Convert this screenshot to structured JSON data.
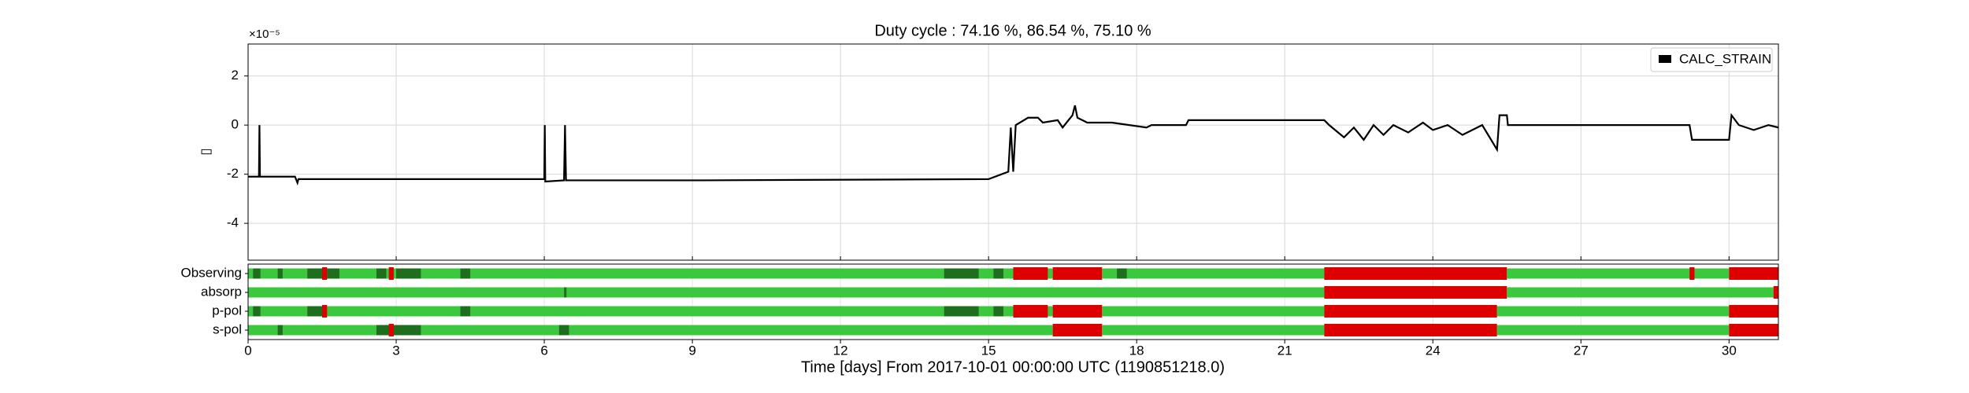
{
  "chart_data": [
    {
      "type": "line",
      "title": "Duty cycle : 74.16 %, 86.54 %, 75.10 %",
      "ylabel": "▯",
      "offset_label": "×10⁻⁵",
      "x": [
        0,
        0.22,
        0.23,
        0.24,
        0.95,
        1.0,
        1.02,
        6.0,
        6.01,
        6.02,
        6.4,
        6.42,
        6.44,
        9.2,
        15.0,
        15.4,
        15.45,
        15.5,
        15.55,
        15.8,
        16.0,
        16.1,
        16.4,
        16.5,
        16.7,
        16.75,
        16.8,
        17.0,
        17.5,
        18.2,
        18.3,
        19.0,
        19.05,
        21.8,
        21.9,
        22.2,
        22.4,
        22.6,
        22.8,
        23.0,
        23.2,
        23.5,
        23.8,
        24.0,
        24.3,
        24.6,
        25.0,
        25.3,
        25.35,
        25.5,
        25.52,
        29.2,
        29.25,
        30.0,
        30.05,
        30.2,
        30.5,
        30.8,
        31.0
      ],
      "series": [
        {
          "name": "CALC_STRAIN",
          "color": "#000000",
          "values": [
            -2.1,
            -2.1,
            0,
            -2.1,
            -2.1,
            -2.35,
            -2.2,
            -2.2,
            0,
            -2.3,
            -2.25,
            0,
            -2.25,
            -2.25,
            -2.2,
            -1.9,
            -0.1,
            -1.9,
            0,
            0.3,
            0.3,
            0.1,
            0.2,
            -0.1,
            0.4,
            0.8,
            0.3,
            0.1,
            0.1,
            -0.1,
            0,
            0,
            0.2,
            0.2,
            0,
            -0.5,
            -0.1,
            -0.6,
            0,
            -0.4,
            0,
            -0.3,
            0.1,
            -0.2,
            0,
            -0.4,
            0,
            -1.0,
            0.4,
            0.4,
            0,
            0,
            -0.6,
            -0.6,
            0.4,
            0,
            -0.2,
            0,
            -0.1
          ]
        }
      ],
      "xlim": [
        0,
        31
      ],
      "xticks": [
        0,
        3,
        6,
        9,
        12,
        15,
        18,
        21,
        24,
        27,
        30
      ],
      "ylim": [
        -5.5,
        3.3
      ],
      "yticks": [
        2,
        0,
        -2,
        -4
      ],
      "grid": true,
      "legend": "upper right"
    },
    {
      "type": "segments",
      "xlabel": "Time [days] From 2017-10-01 00:00:00 UTC (1190851218.0)",
      "categories": [
        "Observing",
        "absorp",
        "p-pol",
        "s-pol"
      ],
      "xlim": [
        0,
        31
      ],
      "xticks": [
        0,
        3,
        6,
        9,
        12,
        15,
        18,
        21,
        24,
        27,
        30
      ],
      "segments": [
        [
          {
            "start": 0,
            "end": 16.3,
            "color": "#3cc83c"
          },
          {
            "start": 0.1,
            "end": 0.25,
            "color": "#1e6e1e"
          },
          {
            "start": 0.6,
            "end": 0.7,
            "color": "#1e6e1e"
          },
          {
            "start": 1.2,
            "end": 1.5,
            "color": "#1e6e1e"
          },
          {
            "start": 1.5,
            "end": 1.6,
            "color": "#dd0000"
          },
          {
            "start": 1.6,
            "end": 1.85,
            "color": "#1e6e1e"
          },
          {
            "start": 2.6,
            "end": 2.8,
            "color": "#1e6e1e"
          },
          {
            "start": 2.85,
            "end": 2.95,
            "color": "#dd0000"
          },
          {
            "start": 3.0,
            "end": 3.5,
            "color": "#1e6e1e"
          },
          {
            "start": 4.3,
            "end": 4.5,
            "color": "#1e6e1e"
          },
          {
            "start": 14.1,
            "end": 14.8,
            "color": "#1e6e1e"
          },
          {
            "start": 15.1,
            "end": 15.3,
            "color": "#1e6e1e"
          },
          {
            "start": 15.5,
            "end": 16.2,
            "color": "#dd0000"
          },
          {
            "start": 16.3,
            "end": 17.3,
            "color": "#dd0000"
          },
          {
            "start": 17.3,
            "end": 21.8,
            "color": "#3cc83c"
          },
          {
            "start": 17.6,
            "end": 17.8,
            "color": "#1e6e1e"
          },
          {
            "start": 21.8,
            "end": 25.5,
            "color": "#dd0000"
          },
          {
            "start": 25.5,
            "end": 30.0,
            "color": "#3cc83c"
          },
          {
            "start": 29.2,
            "end": 29.3,
            "color": "#dd0000"
          },
          {
            "start": 30.0,
            "end": 31.0,
            "color": "#dd0000"
          }
        ],
        [
          {
            "start": 0,
            "end": 21.8,
            "color": "#3cc83c"
          },
          {
            "start": 6.4,
            "end": 6.45,
            "color": "#1e6e1e"
          },
          {
            "start": 21.8,
            "end": 25.5,
            "color": "#dd0000"
          },
          {
            "start": 25.5,
            "end": 30.9,
            "color": "#3cc83c"
          },
          {
            "start": 30.9,
            "end": 31.0,
            "color": "#dd0000"
          }
        ],
        [
          {
            "start": 0,
            "end": 16.3,
            "color": "#3cc83c"
          },
          {
            "start": 0.1,
            "end": 0.25,
            "color": "#1e6e1e"
          },
          {
            "start": 1.2,
            "end": 1.5,
            "color": "#1e6e1e"
          },
          {
            "start": 1.5,
            "end": 1.6,
            "color": "#dd0000"
          },
          {
            "start": 4.3,
            "end": 4.5,
            "color": "#1e6e1e"
          },
          {
            "start": 14.1,
            "end": 14.8,
            "color": "#1e6e1e"
          },
          {
            "start": 15.1,
            "end": 15.3,
            "color": "#1e6e1e"
          },
          {
            "start": 15.5,
            "end": 16.2,
            "color": "#dd0000"
          },
          {
            "start": 16.3,
            "end": 17.3,
            "color": "#dd0000"
          },
          {
            "start": 17.3,
            "end": 21.8,
            "color": "#3cc83c"
          },
          {
            "start": 21.8,
            "end": 25.3,
            "color": "#dd0000"
          },
          {
            "start": 25.3,
            "end": 30.0,
            "color": "#3cc83c"
          },
          {
            "start": 30.0,
            "end": 31.0,
            "color": "#dd0000"
          }
        ],
        [
          {
            "start": 0,
            "end": 16.3,
            "color": "#3cc83c"
          },
          {
            "start": 0.6,
            "end": 0.7,
            "color": "#1e6e1e"
          },
          {
            "start": 2.6,
            "end": 3.5,
            "color": "#1e6e1e"
          },
          {
            "start": 2.85,
            "end": 2.95,
            "color": "#dd0000"
          },
          {
            "start": 6.3,
            "end": 6.5,
            "color": "#1e6e1e"
          },
          {
            "start": 16.3,
            "end": 17.3,
            "color": "#dd0000"
          },
          {
            "start": 17.3,
            "end": 21.8,
            "color": "#3cc83c"
          },
          {
            "start": 21.8,
            "end": 25.3,
            "color": "#dd0000"
          },
          {
            "start": 25.3,
            "end": 30.0,
            "color": "#3cc83c"
          },
          {
            "start": 30.0,
            "end": 31.0,
            "color": "#dd0000"
          }
        ]
      ]
    }
  ]
}
